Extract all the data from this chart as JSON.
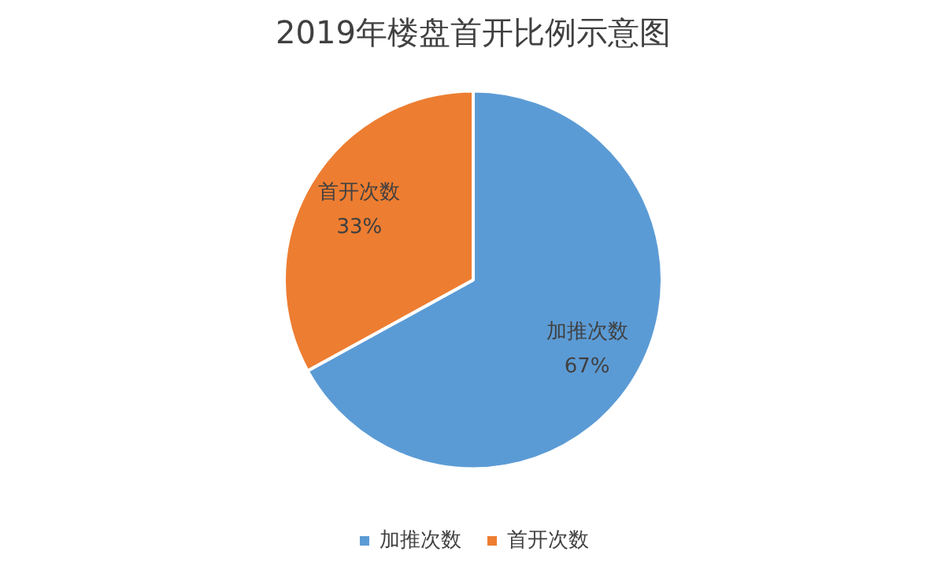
{
  "chart_data": {
    "type": "pie",
    "title": "2019年楼盘首开比例示意图",
    "categories": [
      "加推次数",
      "首开次数"
    ],
    "values": [
      67,
      33
    ],
    "colors": [
      "#5b9bd5",
      "#ed7d31"
    ],
    "value_labels": [
      "67%",
      "33%"
    ],
    "data_labels": true,
    "legend": "bottom"
  }
}
